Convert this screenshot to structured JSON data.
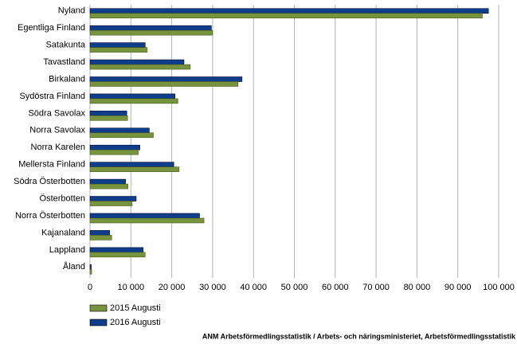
{
  "chart_data": {
    "type": "bar",
    "orientation": "horizontal",
    "categories": [
      "Nyland",
      "Egentliga Finland",
      "Satakunta",
      "Tavastland",
      "Birkaland",
      "Sydöstra Finland",
      "Södra Savolax",
      "Norra Savolax",
      "Norra Karelen",
      "Mellersta Finland",
      "Södra Österbotten",
      "Österbotten",
      "Norra Österbotten",
      "Kajanaland",
      "Lappland",
      "Åland"
    ],
    "series": [
      {
        "name": "2015 Augusti",
        "color": "#77933c",
        "values": [
          96000,
          30000,
          14000,
          24500,
          36200,
          21500,
          9200,
          15500,
          11800,
          21800,
          9300,
          10300,
          27900,
          5300,
          13500,
          400
        ]
      },
      {
        "name": "2016 Augusti",
        "color": "#0e3d8c",
        "values": [
          97500,
          29700,
          13500,
          23000,
          37200,
          20800,
          9000,
          14500,
          12200,
          20500,
          8700,
          11300,
          26800,
          4800,
          13000,
          300
        ]
      }
    ],
    "xlim": [
      0,
      100000
    ],
    "xticks": [
      0,
      {
        "value": 10000,
        "label": "10 000"
      },
      {
        "value": 20000,
        "label": "20 000"
      },
      {
        "value": 30000,
        "label": "30 000"
      },
      {
        "value": 40000,
        "label": "40 000"
      },
      {
        "value": 50000,
        "label": "50 000"
      },
      {
        "value": 60000,
        "label": "60 000"
      },
      {
        "value": 70000,
        "label": "70 000"
      },
      {
        "value": 80000,
        "label": "80 000"
      },
      {
        "value": 90000,
        "label": "90 000"
      },
      {
        "value": 100000,
        "label": "100 000"
      }
    ],
    "grid": true,
    "legend": "bottom-left",
    "source": "ANM Arbetsförmedlingsstatistik / Arbets- och näringsministeriet, Arbetsförmedlingsstatistik"
  }
}
